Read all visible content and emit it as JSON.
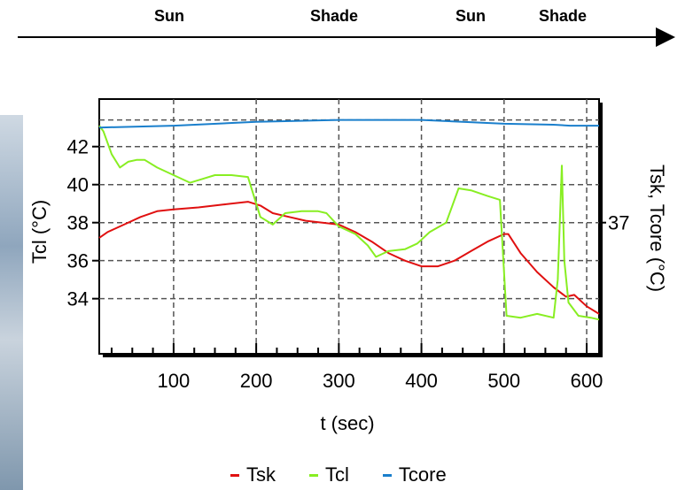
{
  "timeline": {
    "phases": [
      "Sun",
      "Shade",
      "Sun",
      "Shade"
    ]
  },
  "chart_data": {
    "type": "line",
    "title": "",
    "xlabel": "t (sec)",
    "ylabel_left": "Tcl (°C)",
    "ylabel_right": "Tsk, Tcore (°C)",
    "xlim": [
      10,
      615
    ],
    "ylim_left": [
      31.1,
      44.5
    ],
    "x_ticks": [
      100,
      200,
      300,
      400,
      500,
      600
    ],
    "y_ticks_left": [
      34,
      36,
      38,
      40,
      42
    ],
    "y_ticks_right": [
      37
    ],
    "grid": true,
    "legend_position": "bottom",
    "series": [
      {
        "name": "Tsk",
        "color": "#e01010",
        "axis": "left",
        "points": [
          [
            10,
            37.2
          ],
          [
            20,
            37.5
          ],
          [
            40,
            37.9
          ],
          [
            60,
            38.3
          ],
          [
            80,
            38.6
          ],
          [
            100,
            38.7
          ],
          [
            130,
            38.8
          ],
          [
            160,
            38.95
          ],
          [
            190,
            39.1
          ],
          [
            205,
            38.9
          ],
          [
            220,
            38.5
          ],
          [
            240,
            38.3
          ],
          [
            260,
            38.1
          ],
          [
            280,
            38.0
          ],
          [
            300,
            37.9
          ],
          [
            320,
            37.5
          ],
          [
            340,
            37.0
          ],
          [
            360,
            36.4
          ],
          [
            380,
            36.0
          ],
          [
            400,
            35.7
          ],
          [
            420,
            35.7
          ],
          [
            440,
            36.0
          ],
          [
            460,
            36.5
          ],
          [
            480,
            37.0
          ],
          [
            500,
            37.4
          ],
          [
            505,
            37.4
          ],
          [
            520,
            36.4
          ],
          [
            540,
            35.4
          ],
          [
            560,
            34.6
          ],
          [
            575,
            34.1
          ],
          [
            585,
            34.2
          ],
          [
            600,
            33.6
          ],
          [
            615,
            33.2
          ]
        ]
      },
      {
        "name": "Tcl",
        "color": "#88ee22",
        "axis": "left",
        "points": [
          [
            10,
            43.1
          ],
          [
            15,
            42.8
          ],
          [
            25,
            41.6
          ],
          [
            35,
            40.9
          ],
          [
            45,
            41.2
          ],
          [
            55,
            41.3
          ],
          [
            65,
            41.3
          ],
          [
            80,
            40.9
          ],
          [
            100,
            40.5
          ],
          [
            120,
            40.1
          ],
          [
            135,
            40.3
          ],
          [
            150,
            40.5
          ],
          [
            170,
            40.5
          ],
          [
            190,
            40.4
          ],
          [
            205,
            38.3
          ],
          [
            220,
            37.9
          ],
          [
            235,
            38.5
          ],
          [
            255,
            38.6
          ],
          [
            275,
            38.6
          ],
          [
            285,
            38.5
          ],
          [
            300,
            37.8
          ],
          [
            320,
            37.4
          ],
          [
            335,
            36.8
          ],
          [
            345,
            36.2
          ],
          [
            360,
            36.5
          ],
          [
            380,
            36.6
          ],
          [
            395,
            36.9
          ],
          [
            410,
            37.5
          ],
          [
            430,
            38.0
          ],
          [
            445,
            39.8
          ],
          [
            460,
            39.7
          ],
          [
            480,
            39.4
          ],
          [
            495,
            39.2
          ],
          [
            503,
            33.1
          ],
          [
            520,
            33.0
          ],
          [
            540,
            33.2
          ],
          [
            560,
            33.0
          ],
          [
            565,
            35.0
          ],
          [
            570,
            41.0
          ],
          [
            573,
            36.0
          ],
          [
            578,
            33.8
          ],
          [
            590,
            33.1
          ],
          [
            605,
            33.0
          ],
          [
            615,
            32.9
          ]
        ]
      },
      {
        "name": "Tcore",
        "color": "#1a7fcc",
        "axis": "right",
        "points": [
          [
            10,
            43.0
          ],
          [
            100,
            43.1
          ],
          [
            200,
            43.3
          ],
          [
            300,
            43.4
          ],
          [
            400,
            43.4
          ],
          [
            500,
            43.2
          ],
          [
            560,
            43.15
          ],
          [
            580,
            43.1
          ],
          [
            615,
            43.1
          ]
        ]
      }
    ]
  }
}
